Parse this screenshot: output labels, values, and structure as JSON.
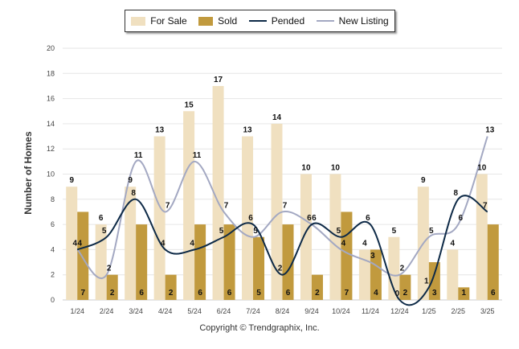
{
  "chart_data": {
    "type": "bar",
    "title": "",
    "ylabel": "Number of Homes",
    "xlabel": "",
    "ylim": [
      0,
      20
    ],
    "yticks": [
      0,
      2,
      4,
      6,
      8,
      10,
      12,
      14,
      16,
      18,
      20
    ],
    "grid": true,
    "legend_position": "top",
    "categories": [
      "1/24",
      "2/24",
      "3/24",
      "4/24",
      "5/24",
      "6/24",
      "7/24",
      "8/24",
      "9/24",
      "10/24",
      "11/24",
      "12/24",
      "1/25",
      "2/25",
      "3/25"
    ],
    "series": [
      {
        "name": "For Sale",
        "kind": "bar",
        "color": "#f0e0c0",
        "values": [
          9,
          6,
          9,
          13,
          15,
          17,
          13,
          14,
          10,
          10,
          4,
          5,
          9,
          4,
          10
        ]
      },
      {
        "name": "Sold",
        "kind": "bar",
        "color": "#c19a3e",
        "values": [
          7,
          2,
          6,
          2,
          6,
          6,
          5,
          6,
          2,
          7,
          4,
          2,
          3,
          1,
          6
        ]
      },
      {
        "name": "Pended",
        "kind": "line",
        "color": "#0e2a47",
        "values": [
          4,
          5,
          8,
          4,
          4,
          5,
          6,
          2,
          6,
          5,
          6,
          0,
          1,
          8,
          7
        ]
      },
      {
        "name": "New Listing",
        "kind": "line",
        "color": "#a3a8c2",
        "values": [
          4,
          2,
          11,
          7,
          11,
          7,
          5,
          7,
          6,
          4,
          3,
          2,
          5,
          6,
          13
        ]
      }
    ]
  },
  "footer": "Copyright © Trendgraphix, Inc."
}
